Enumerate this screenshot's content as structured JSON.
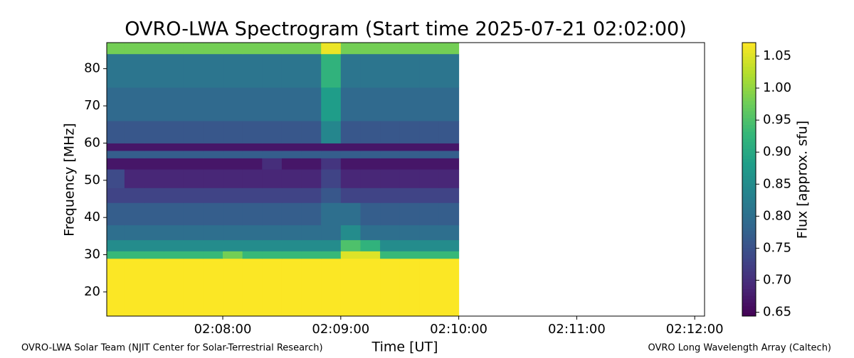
{
  "chart_data": {
    "type": "heatmap",
    "title": "OVRO-LWA Spectrogram (Start time 2025-07-21 02:02:00)",
    "xlabel": "Time [UT]",
    "ylabel": "Frequency [MHz]",
    "colorbar_label": "Flux [approx. sfu]",
    "colormap": "viridis",
    "x": [
      "02:07:01",
      "02:07:10",
      "02:07:20",
      "02:07:30",
      "02:07:40",
      "02:07:50",
      "02:08:00",
      "02:08:10",
      "02:08:20",
      "02:08:30",
      "02:08:40",
      "02:08:50",
      "02:09:00",
      "02:09:10",
      "02:09:20",
      "02:09:30",
      "02:09:40",
      "02:09:50",
      "02:10:00"
    ],
    "y": [
      13.5,
      29,
      31,
      34,
      38,
      44,
      48,
      53,
      56,
      58,
      60,
      66,
      75,
      84,
      87
    ],
    "z": [
      [
        1.07,
        1.07,
        1.07,
        1.07,
        1.07,
        1.07,
        1.07,
        1.07,
        1.07,
        1.07,
        1.07,
        1.07,
        1.07,
        1.07,
        1.07,
        1.07,
        1.07,
        1.07
      ],
      [
        0.93,
        0.93,
        0.93,
        0.93,
        0.93,
        0.93,
        0.98,
        0.93,
        0.93,
        0.93,
        0.93,
        0.93,
        1.05,
        1.05,
        0.93,
        0.93,
        0.93,
        0.93
      ],
      [
        0.85,
        0.85,
        0.85,
        0.85,
        0.85,
        0.85,
        0.85,
        0.85,
        0.85,
        0.85,
        0.85,
        0.85,
        0.95,
        0.92,
        0.85,
        0.85,
        0.85,
        0.85
      ],
      [
        0.8,
        0.8,
        0.8,
        0.8,
        0.8,
        0.8,
        0.8,
        0.8,
        0.8,
        0.8,
        0.8,
        0.8,
        0.85,
        0.8,
        0.8,
        0.8,
        0.8,
        0.8
      ],
      [
        0.77,
        0.77,
        0.77,
        0.77,
        0.77,
        0.77,
        0.77,
        0.77,
        0.77,
        0.77,
        0.77,
        0.8,
        0.8,
        0.77,
        0.77,
        0.77,
        0.77,
        0.77
      ],
      [
        0.73,
        0.73,
        0.73,
        0.73,
        0.73,
        0.73,
        0.73,
        0.73,
        0.73,
        0.73,
        0.73,
        0.76,
        0.73,
        0.73,
        0.73,
        0.73,
        0.73,
        0.73
      ],
      [
        0.74,
        0.69,
        0.69,
        0.69,
        0.69,
        0.69,
        0.69,
        0.69,
        0.69,
        0.69,
        0.69,
        0.73,
        0.69,
        0.69,
        0.69,
        0.69,
        0.69,
        0.69
      ],
      [
        0.67,
        0.67,
        0.67,
        0.67,
        0.67,
        0.67,
        0.67,
        0.67,
        0.7,
        0.67,
        0.67,
        0.71,
        0.67,
        0.67,
        0.67,
        0.67,
        0.67,
        0.67
      ],
      [
        0.77,
        0.77,
        0.77,
        0.77,
        0.77,
        0.77,
        0.77,
        0.77,
        0.77,
        0.77,
        0.77,
        0.77,
        0.77,
        0.77,
        0.77,
        0.77,
        0.77,
        0.77
      ],
      [
        0.67,
        0.67,
        0.67,
        0.67,
        0.67,
        0.67,
        0.67,
        0.67,
        0.67,
        0.67,
        0.67,
        0.67,
        0.67,
        0.67,
        0.67,
        0.67,
        0.67,
        0.67
      ],
      [
        0.76,
        0.76,
        0.76,
        0.76,
        0.76,
        0.76,
        0.76,
        0.76,
        0.76,
        0.76,
        0.76,
        0.84,
        0.76,
        0.76,
        0.76,
        0.76,
        0.76,
        0.76
      ],
      [
        0.79,
        0.79,
        0.79,
        0.79,
        0.79,
        0.79,
        0.79,
        0.79,
        0.79,
        0.79,
        0.79,
        0.88,
        0.79,
        0.79,
        0.79,
        0.79,
        0.79,
        0.79
      ],
      [
        0.81,
        0.81,
        0.81,
        0.81,
        0.81,
        0.81,
        0.81,
        0.81,
        0.81,
        0.81,
        0.81,
        0.92,
        0.81,
        0.81,
        0.81,
        0.81,
        0.81,
        0.81
      ],
      [
        0.98,
        0.98,
        0.98,
        0.98,
        0.98,
        0.98,
        0.98,
        0.98,
        0.98,
        0.98,
        0.98,
        1.06,
        0.98,
        0.98,
        0.98,
        0.98,
        0.98,
        0.98
      ]
    ],
    "xlim": [
      "02:07:01",
      "02:12:05"
    ],
    "xticks": [
      "02:08:00",
      "02:09:00",
      "02:10:00",
      "02:11:00",
      "02:12:00"
    ],
    "ylim": [
      13.5,
      87
    ],
    "yticks": [
      20,
      30,
      40,
      50,
      60,
      70,
      80
    ],
    "clim": [
      0.644,
      1.071
    ],
    "cticks": [
      0.65,
      {
        "value": 0.7,
        "label": "0.70"
      },
      0.75,
      {
        "value": 0.8,
        "label": "0.80"
      },
      0.85,
      {
        "value": 0.9,
        "label": "0.90"
      },
      0.95,
      {
        "value": 1.0,
        "label": "1.00"
      },
      1.05
    ],
    "footer_left": "OVRO-LWA Solar Team (NJIT Center for Solar-Terrestrial Research)",
    "footer_right": "OVRO Long Wavelength Array (Caltech)"
  }
}
